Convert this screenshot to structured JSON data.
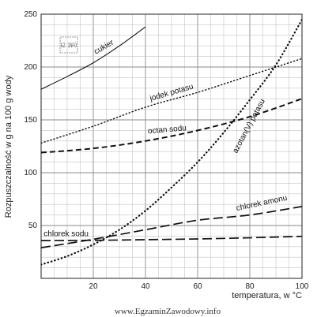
{
  "chart_data": {
    "type": "line",
    "title": "",
    "xlabel": "temperatura, w °C",
    "ylabel": "Rozpuszczalność w g na 100 g wody",
    "xlim": [
      0,
      100
    ],
    "ylim": [
      0,
      250
    ],
    "xticks": [
      "20",
      "40",
      "60",
      "80",
      "100"
    ],
    "yticks": [
      "50",
      "100",
      "150",
      "200",
      "250"
    ],
    "grid": true,
    "series": [
      {
        "name": "cukier",
        "style": "solid",
        "x": [
          0,
          10,
          20,
          30,
          40
        ],
        "values": [
          179,
          191,
          204,
          220,
          238
        ]
      },
      {
        "name": "jodek potasu",
        "style": "dotted",
        "x": [
          0,
          20,
          40,
          60,
          80,
          100
        ],
        "values": [
          128,
          144,
          162,
          176,
          192,
          208
        ]
      },
      {
        "name": "octan sodu",
        "style": "dashed",
        "x": [
          0,
          20,
          40,
          60,
          80,
          100
        ],
        "values": [
          119,
          123,
          130,
          140,
          153,
          170
        ]
      },
      {
        "name": "azotan(V) potasu",
        "style": "dotted-bold",
        "x": [
          0,
          10,
          20,
          30,
          40,
          50,
          60,
          70,
          80,
          90,
          100
        ],
        "values": [
          13,
          21,
          32,
          46,
          64,
          86,
          110,
          138,
          169,
          202,
          245
        ]
      },
      {
        "name": "chlorek amonu",
        "style": "long-dash",
        "x": [
          0,
          20,
          40,
          60,
          80,
          100
        ],
        "values": [
          29,
          37,
          46,
          55,
          60,
          68
        ]
      },
      {
        "name": "chlorek sodu",
        "style": "long-dash",
        "x": [
          0,
          20,
          40,
          60,
          80,
          100
        ],
        "values": [
          35.7,
          36,
          36.6,
          37.3,
          38.4,
          39.8
        ]
      }
    ],
    "labels": [
      {
        "text": "cukier",
        "x": 21,
        "y": 212,
        "angle": -30
      },
      {
        "text": "jodek potasu",
        "x": 42,
        "y": 168,
        "angle": -16
      },
      {
        "text": "octan sodu",
        "x": 41,
        "y": 137,
        "angle": -5
      },
      {
        "text": "azotan(V) potasu",
        "x": 75,
        "y": 118,
        "angle": -62
      },
      {
        "text": "chlorek amonu",
        "x": 75,
        "y": 64,
        "angle": -12
      },
      {
        "text": "chlorek sodu",
        "x": 1,
        "y": 40,
        "angle": 0
      }
    ]
  },
  "watermark": "www.EgzaminZawodowy.info",
  "logo_text": "EZ INFO"
}
